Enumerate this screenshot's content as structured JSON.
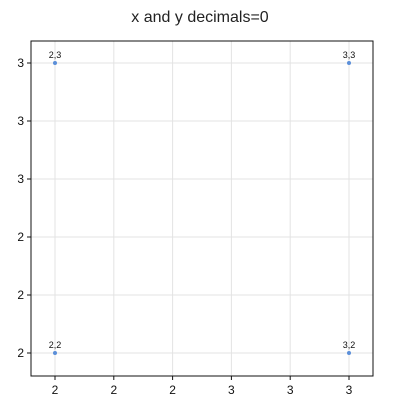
{
  "chart_data": {
    "type": "scatter",
    "title": "x and y decimals=0",
    "xlabel": "",
    "ylabel": "",
    "xlim": [
      2,
      3
    ],
    "ylim": [
      2,
      3
    ],
    "grid": true,
    "x_tick_labels": [
      "2",
      "2",
      "2",
      "3",
      "3",
      "3"
    ],
    "y_tick_labels": [
      "2",
      "2",
      "2",
      "3",
      "3",
      "3"
    ],
    "point_color": "#5b8fd9",
    "grid_color": "#e3e3e3",
    "frame_color": "#111111",
    "points": [
      {
        "x": 2,
        "y": 3,
        "label": "2,3"
      },
      {
        "x": 3,
        "y": 3,
        "label": "3,3"
      },
      {
        "x": 2,
        "y": 2,
        "label": "2,2"
      },
      {
        "x": 3,
        "y": 2,
        "label": "3,2"
      }
    ]
  }
}
